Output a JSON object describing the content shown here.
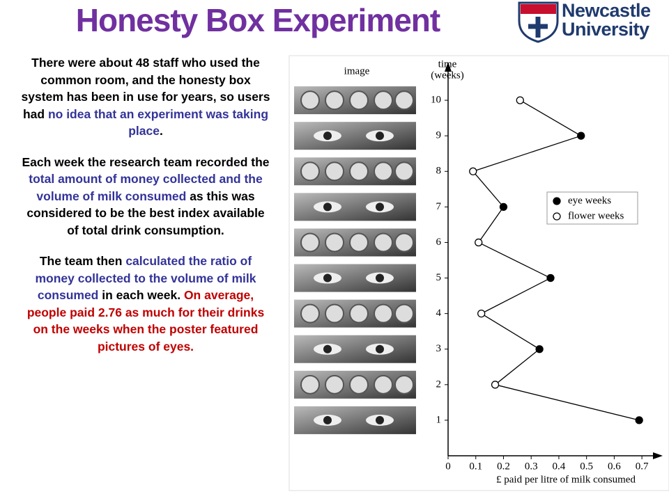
{
  "header": {
    "title": "Honesty Box Experiment",
    "logo": [
      "Newcastle",
      "University"
    ]
  },
  "paragraphs": [
    [
      {
        "text": "There were about 48 staff who used the common room, and the honesty box system has been in use for years, so users had ",
        "color": "#000000"
      },
      {
        "text": "no idea that an experiment was taking place",
        "color": "#333399"
      },
      {
        "text": ".",
        "color": "#000000"
      }
    ],
    [
      {
        "text": "Each week the research team recorded the ",
        "color": "#000000"
      },
      {
        "text": "total amount of money collected and the volume of milk consumed",
        "color": "#333399"
      },
      {
        "text": " as this was considered to be the best index available of total drink consumption.",
        "color": "#000000"
      }
    ],
    [
      {
        "text": "The team then ",
        "color": "#000000"
      },
      {
        "text": "calculated the ratio of money collected to the volume of milk consumed",
        "color": "#333399"
      },
      {
        "text": " in each week. ",
        "color": "#000000"
      },
      {
        "text": "On average, people paid 2.76 as much for their drinks on the weeks when the poster featured pictures of eyes.",
        "color": "#c00000"
      }
    ]
  ],
  "chart_data": {
    "type": "line",
    "orientation": "horizontal",
    "image_label": "image",
    "y_label": [
      "time",
      "(weeks)"
    ],
    "x_label": "£ paid per litre of milk consumed",
    "x": [
      1,
      2,
      3,
      4,
      5,
      6,
      7,
      8,
      9,
      10
    ],
    "series": [
      {
        "name": "eye weeks",
        "color": "#000000",
        "values": [
          0.69,
          null,
          0.33,
          null,
          0.37,
          null,
          0.2,
          null,
          0.48,
          null
        ]
      },
      {
        "name": "flower weeks",
        "color": "#ffffff",
        "values": [
          null,
          0.17,
          null,
          0.12,
          null,
          0.11,
          null,
          0.09,
          null,
          0.26
        ]
      }
    ],
    "ylim": [
      0,
      11
    ],
    "yticks": [
      1,
      2,
      3,
      4,
      5,
      6,
      7,
      8,
      9,
      10
    ],
    "xlim": [
      0,
      0.75
    ],
    "xticks": [
      0,
      0.1,
      0.2,
      0.3,
      0.4,
      0.5,
      0.6,
      0.7
    ],
    "legend": "right",
    "grid": false
  }
}
